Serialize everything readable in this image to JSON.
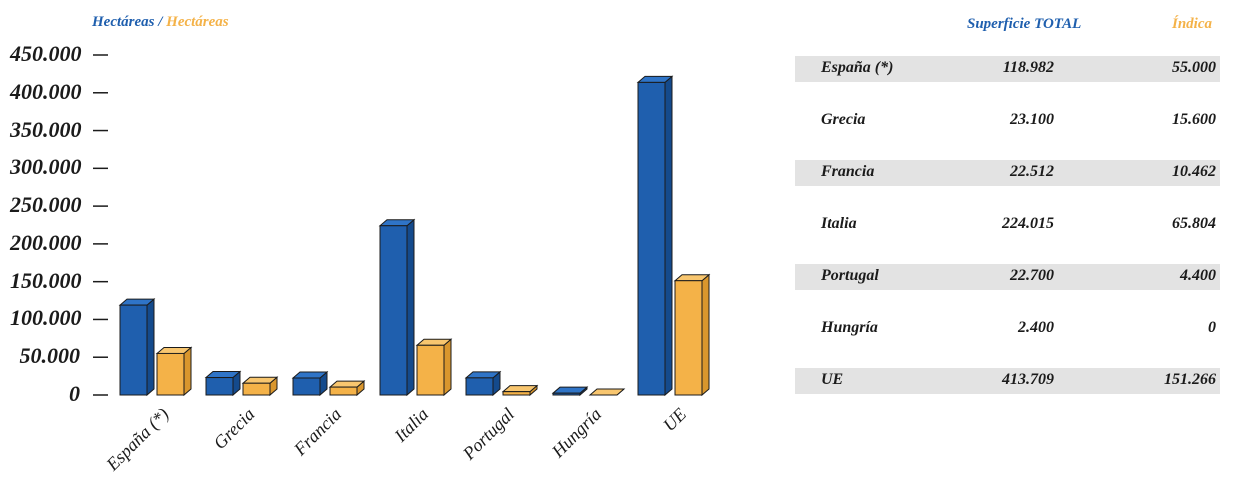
{
  "legend": {
    "left": "Hectáreas",
    "separator": "/",
    "right": "Hectáreas"
  },
  "colors": {
    "blue": "#1f5fae",
    "blue_side": "#144a8c",
    "blue_top": "#2f74c7",
    "orange": "#f4b248",
    "orange_side": "#d9962d",
    "orange_top": "#f8c66f"
  },
  "table": {
    "headers": {
      "total": "Superficie TOTAL",
      "indica": "Índica"
    },
    "rows": [
      {
        "name": "España (*)",
        "total": "118.982",
        "indica": "55.000"
      },
      {
        "name": "Grecia",
        "total": "23.100",
        "indica": "15.600"
      },
      {
        "name": "Francia",
        "total": "22.512",
        "indica": "10.462"
      },
      {
        "name": "Italia",
        "total": "224.015",
        "indica": "65.804"
      },
      {
        "name": "Portugal",
        "total": "22.700",
        "indica": "4.400"
      },
      {
        "name": "Hungría",
        "total": "2.400",
        "indica": "0"
      },
      {
        "name": "UE",
        "total": "413.709",
        "indica": "151.266"
      }
    ]
  },
  "chart_data": {
    "type": "bar",
    "categories": [
      "España (*)",
      "Grecia",
      "Francia",
      "Italia",
      "Portugal",
      "Hungría",
      "UE"
    ],
    "series": [
      {
        "values": [
          118982,
          23100,
          22512,
          224015,
          22700,
          2400,
          413709
        ]
      },
      {
        "values": [
          55000,
          15600,
          10462,
          65804,
          4400,
          0,
          151266
        ]
      }
    ],
    "yticks": [
      "0",
      "50.000",
      "100.000",
      "150.000",
      "200.000",
      "250.000",
      "300.000",
      "350.000",
      "400.000",
      "450.000"
    ],
    "ylim": [
      0,
      450000
    ],
    "grid": false,
    "legend_position": "top-left"
  }
}
